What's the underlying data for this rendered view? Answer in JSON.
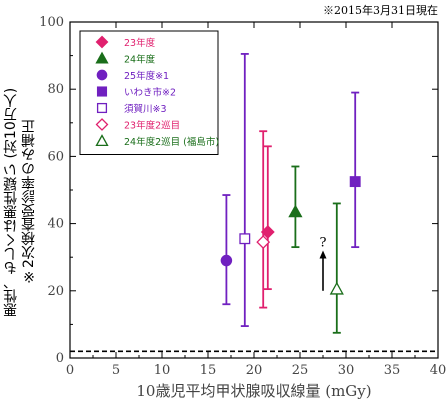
{
  "note": "※2015年3月31日現在",
  "chart_data": {
    "type": "scatter",
    "xlabel": "10歳児平均甲状腺吸収線量 (mGy)",
    "ylabel_lines": [
      "悪性、もしくは悪性疑い (対10万人)",
      "※2次検査受診率のみ補正"
    ],
    "xlim": [
      0,
      40
    ],
    "ylim": [
      0,
      100
    ],
    "xticks": [
      0,
      5,
      10,
      15,
      20,
      25,
      30,
      35,
      40
    ],
    "yticks": [
      0,
      20,
      40,
      60,
      80,
      100
    ],
    "baseline_dashed": 2,
    "annotation": {
      "text": "?",
      "x": 27.5,
      "y": 20,
      "arrow_to_y": 32
    },
    "series": [
      {
        "name": "23年度",
        "color": "#e0206e",
        "marker": "diamond-filled",
        "points": [
          {
            "x": 21.5,
            "y": 37.5,
            "ylow": 20.5,
            "yhigh": 63
          }
        ]
      },
      {
        "name": "24年度",
        "color": "#1a6e1a",
        "marker": "triangle-filled",
        "points": [
          {
            "x": 24.5,
            "y": 43.5,
            "ylow": 33,
            "yhigh": 57
          }
        ]
      },
      {
        "name": "25年度※1",
        "color": "#7020c0",
        "marker": "circle-filled",
        "points": [
          {
            "x": 17,
            "y": 29,
            "ylow": 16,
            "yhigh": 48.5
          }
        ]
      },
      {
        "name": "いわき市※2",
        "color": "#7020c0",
        "marker": "square-filled",
        "points": [
          {
            "x": 31,
            "y": 52.5,
            "ylow": 33,
            "yhigh": 79
          }
        ]
      },
      {
        "name": "須賀川※3",
        "color": "#7020c0",
        "marker": "square-open",
        "points": [
          {
            "x": 19,
            "y": 35.5,
            "ylow": 9.5,
            "yhigh": 90.5
          }
        ]
      },
      {
        "name": "23年度2巡目",
        "color": "#e0206e",
        "marker": "diamond-open",
        "points": [
          {
            "x": 21,
            "y": 34.5,
            "ylow": 15,
            "yhigh": 67.5
          }
        ]
      },
      {
        "name": "24年度2巡目 (福島市)",
        "color": "#1a6e1a",
        "marker": "triangle-open",
        "points": [
          {
            "x": 29,
            "y": 20.5,
            "ylow": 7.5,
            "yhigh": 46
          }
        ]
      }
    ]
  }
}
